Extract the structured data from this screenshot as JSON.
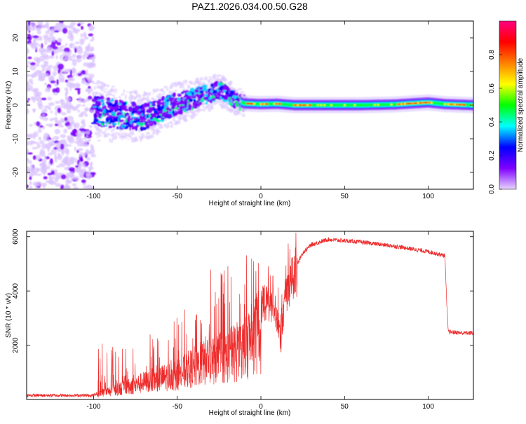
{
  "title": "PAZ1.2026.034.00.50.G28",
  "chart_data": [
    {
      "id": "spectrogram",
      "type": "heatmap",
      "xlabel": "Height of straight line (km)",
      "ylabel": "Frequency (Hz)",
      "xlim": [
        -140,
        127
      ],
      "ylim": [
        -25,
        25
      ],
      "xticks": [
        -100,
        -50,
        0,
        50,
        100
      ],
      "yticks": [
        -20,
        -10,
        0,
        10,
        20
      ],
      "colorbar": {
        "label": "Normalized spectral amplitude",
        "range": [
          0,
          1
        ],
        "ticks": [
          0.0,
          0.2,
          0.4,
          0.6,
          0.8
        ],
        "tick_labels": [
          "0.0",
          "0.2",
          "0.4",
          "0.6",
          "0.8"
        ],
        "colormap": [
          "#e8d5ff",
          "#7f00ff",
          "#0000ff",
          "#00ffff",
          "#00ff00",
          "#ffff00",
          "#ff8000",
          "#ff0000",
          "#ff0080"
        ]
      },
      "ridge": {
        "x": [
          -100,
          -90,
          -80,
          -70,
          -60,
          -50,
          -40,
          -30,
          -25,
          -20,
          -15,
          -10,
          0,
          10,
          20,
          40,
          60,
          80,
          100,
          110,
          127
        ],
        "y": [
          -1.5,
          -2.5,
          -3.0,
          -3.5,
          -1.5,
          0.5,
          2.0,
          3.5,
          4.5,
          3.0,
          1.5,
          0.5,
          0.3,
          0.4,
          0.0,
          0.0,
          0.0,
          0.2,
          0.8,
          0.3,
          0.0
        ]
      }
    },
    {
      "id": "snr",
      "type": "line",
      "xlabel": "Height of straight line (km)",
      "ylabel": "SNR (10 * v/v)",
      "xlim": [
        -140,
        127
      ],
      "ylim": [
        0,
        6200
      ],
      "xticks": [
        -100,
        -50,
        0,
        50,
        100
      ],
      "yticks": [
        2000,
        4000,
        6000
      ],
      "color": "#ee2b2b",
      "envelope": {
        "x": [
          -140,
          -100,
          -95,
          -80,
          -70,
          -60,
          -50,
          -40,
          -30,
          -20,
          -15,
          -10,
          -5,
          0,
          5,
          10,
          12,
          15,
          20,
          25,
          30,
          40,
          60,
          80,
          100,
          110,
          111,
          112,
          120,
          127
        ],
        "y": [
          150,
          150,
          350,
          650,
          900,
          1100,
          1300,
          1700,
          2100,
          2300,
          2500,
          2700,
          3300,
          3600,
          3800,
          3200,
          2200,
          4200,
          4800,
          5400,
          5700,
          5900,
          5800,
          5650,
          5450,
          5300,
          3600,
          2500,
          2450,
          2450
        ]
      }
    }
  ]
}
